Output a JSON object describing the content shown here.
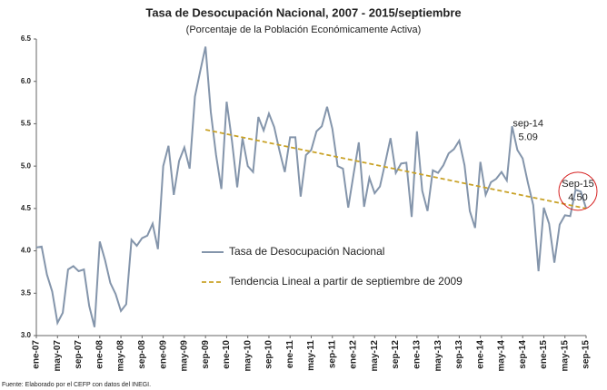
{
  "chart_data": {
    "type": "line",
    "title": "Tasa de Desocupación Nacional, 2007 - 2015/septiembre",
    "subtitle": "(Porcentaje de la Población Económicamente Activa)",
    "source": "Fuente: Elaborado por el CEFP con datos del INEGI.",
    "categories": [
      "ene-07",
      null,
      null,
      null,
      "may-07",
      null,
      null,
      null,
      "sep-07",
      null,
      null,
      null,
      "ene-08",
      null,
      null,
      null,
      "may-08",
      null,
      null,
      null,
      "sep-08",
      null,
      null,
      null,
      "ene-09",
      null,
      null,
      null,
      "may-09",
      null,
      null,
      null,
      "sep-09",
      null,
      null,
      null,
      "ene-10",
      null,
      null,
      null,
      "may-10",
      null,
      null,
      null,
      "sep-10",
      null,
      null,
      null,
      "ene-11",
      null,
      null,
      null,
      "may-11",
      null,
      null,
      null,
      "sep-11",
      null,
      null,
      null,
      "ene-12",
      null,
      null,
      null,
      "may-12",
      null,
      null,
      null,
      "sep-12",
      null,
      null,
      null,
      "ene-13",
      null,
      null,
      null,
      "may-13",
      null,
      null,
      null,
      "sep-13",
      null,
      null,
      null,
      "ene-14",
      null,
      null,
      null,
      "may-14",
      null,
      null,
      null,
      "sep-14",
      null,
      null,
      null,
      "ene-15",
      null,
      null,
      null,
      "may-15",
      null,
      null,
      null,
      "sep-15"
    ],
    "series": [
      {
        "name": "Tasa de Desocupación Nacional",
        "color": "#8495ab",
        "values": [
          4.04,
          4.05,
          3.72,
          3.52,
          3.15,
          3.27,
          3.78,
          3.82,
          3.76,
          3.78,
          3.35,
          3.1,
          4.11,
          3.89,
          3.62,
          3.49,
          3.29,
          3.37,
          4.13,
          4.06,
          4.15,
          4.18,
          4.32,
          4.02,
          5.0,
          5.24,
          4.66,
          5.06,
          5.22,
          4.97,
          5.82,
          6.12,
          6.41,
          5.64,
          5.13,
          4.73,
          5.76,
          5.3,
          4.75,
          5.33,
          5.0,
          4.93,
          5.58,
          5.42,
          5.62,
          5.46,
          5.18,
          4.93,
          5.34,
          5.34,
          4.64,
          5.13,
          5.19,
          5.41,
          5.47,
          5.7,
          5.44,
          5.0,
          4.97,
          4.51,
          4.9,
          5.28,
          4.52,
          4.86,
          4.68,
          4.76,
          5.04,
          5.33,
          4.92,
          5.03,
          5.04,
          4.4,
          5.41,
          4.71,
          4.47,
          4.95,
          4.92,
          5.01,
          5.15,
          5.2,
          5.3,
          5.01,
          4.47,
          4.27,
          5.05,
          4.66,
          4.81,
          4.85,
          4.93,
          4.83,
          5.47,
          5.19,
          5.09,
          4.8,
          4.54,
          3.76,
          4.51,
          4.32,
          3.86,
          4.31,
          4.42,
          4.41,
          4.72,
          4.7,
          4.5
        ]
      }
    ],
    "trend": {
      "name": "Tendencia Lineal a partir de septiembre de 2009",
      "color": "#c9a227",
      "x": [
        "sep-09",
        "sep-15"
      ],
      "values": [
        5.43,
        4.5
      ]
    },
    "annotations": [
      {
        "label": "sep-14",
        "x": "sep-14",
        "value": 5.09
      },
      {
        "label": "Sep-15",
        "x": "sep-15",
        "value": 4.5,
        "value_label": "4.50",
        "circle_color": "#d62020"
      }
    ],
    "ylim": [
      3,
      6.5
    ],
    "yticks": [
      {
        "value": 3,
        "label": "3.0"
      },
      {
        "value": 3.5,
        "label": "3.5"
      },
      {
        "value": 4,
        "label": "4.0"
      },
      {
        "value": 4.5,
        "label": "4.5"
      },
      {
        "value": 5,
        "label": "5.0"
      },
      {
        "value": 5.5,
        "label": "5.5"
      },
      {
        "value": 6,
        "label": "6.0"
      },
      {
        "value": 6.5,
        "label": "6.5"
      }
    ]
  }
}
